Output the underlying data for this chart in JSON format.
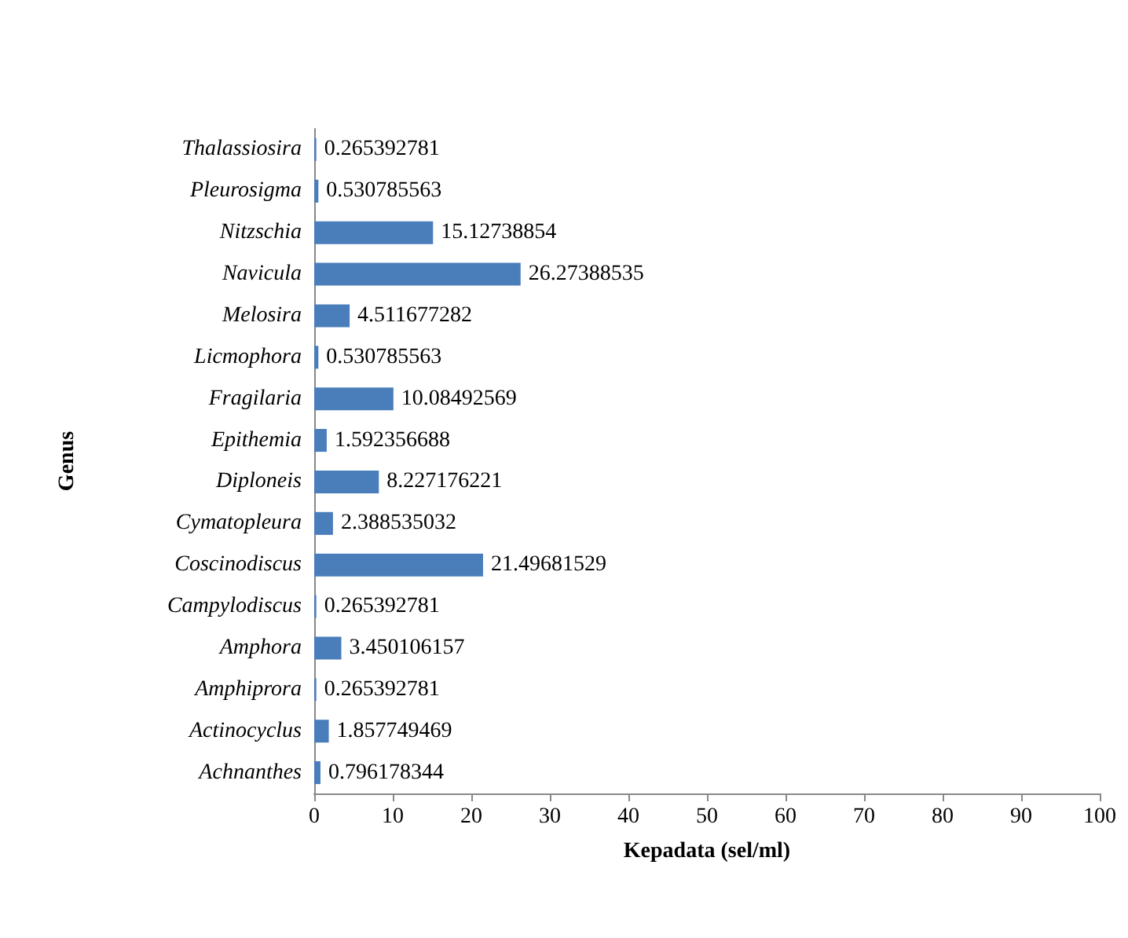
{
  "chart_data": {
    "type": "bar",
    "orientation": "horizontal",
    "xlabel": "Kepadata (sel/ml)",
    "ylabel": "Genus",
    "categories": [
      "Thalassiosira",
      "Pleurosigma",
      "Nitzschia",
      "Navicula",
      "Melosira",
      "Licmophora",
      "Fragilaria",
      "Epithemia",
      "Diploneis",
      "Cymatopleura",
      "Coscinodiscus",
      "Campylodiscus",
      "Amphora",
      "Amphiprora",
      "Actinocyclus",
      "Achnanthes"
    ],
    "values": [
      0.265392781,
      0.530785563,
      15.12738854,
      26.27388535,
      4.511677282,
      0.530785563,
      10.08492569,
      1.592356688,
      8.227176221,
      2.388535032,
      21.49681529,
      0.265392781,
      3.450106157,
      0.265392781,
      1.857749469,
      0.796178344
    ],
    "color": "#4a7ebb",
    "xlim": [
      0,
      100
    ],
    "xticks": [
      0,
      10,
      20,
      30,
      40,
      50,
      60,
      70,
      80,
      90,
      100
    ],
    "grid": false,
    "data_labels": true
  }
}
